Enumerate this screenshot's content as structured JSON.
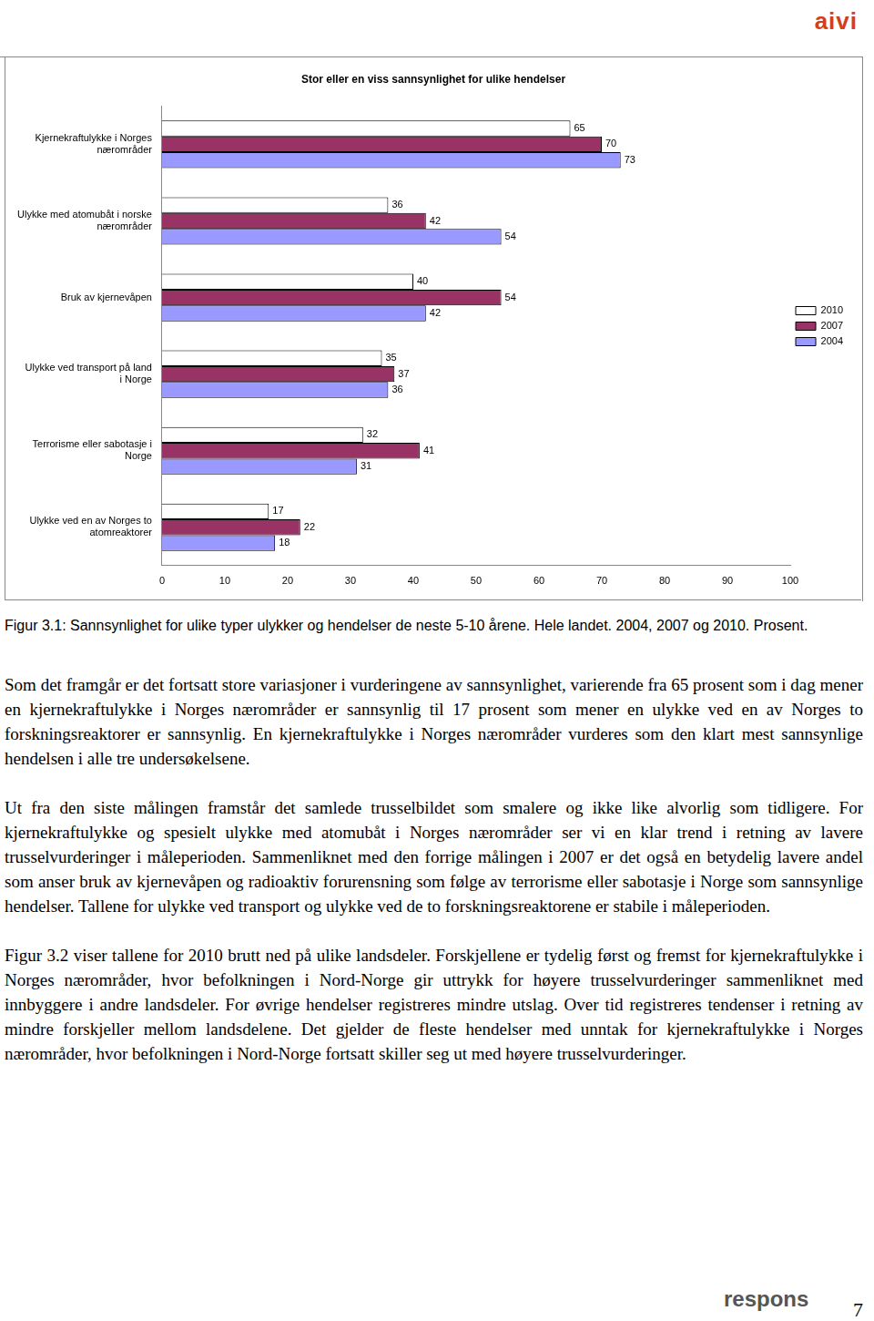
{
  "chart_data": {
    "type": "bar",
    "orientation": "horizontal",
    "title": "Stor eller en viss sannsynlighet for ulike hendelser",
    "categories": [
      "Kjernekraftulykke i Norges nærområder",
      "Ulykke med atomubåt i norske nærområder",
      "Bruk av kjernevåpen",
      "Ulykke ved transport på land i Norge",
      "Terrorisme eller sabotasje i Norge",
      "Ulykke ved en av Norges to atomreaktorer"
    ],
    "series": [
      {
        "name": "2010",
        "color": "#ffffff",
        "values": [
          65,
          36,
          40,
          35,
          32,
          17
        ]
      },
      {
        "name": "2007",
        "color": "#993366",
        "values": [
          70,
          42,
          54,
          37,
          41,
          22
        ]
      },
      {
        "name": "2004",
        "color": "#9999ff",
        "values": [
          73,
          54,
          42,
          36,
          31,
          18
        ]
      }
    ],
    "xlim": [
      0,
      100
    ],
    "xticks": [
      0,
      10,
      20,
      30,
      40,
      50,
      60,
      70,
      80,
      90,
      100
    ],
    "grid": false,
    "legend": "right",
    "data_labels": true
  },
  "header_logo": "aivi",
  "caption": "Figur 3.1: Sannsynlighet for ulike typer ulykker og hendelser de neste 5-10 årene. Hele landet. 2004, 2007 og 2010. Prosent.",
  "paragraphs": [
    "Som det framgår er det fortsatt store variasjoner i vurderingene av sannsynlighet, varierende fra 65 prosent som i dag mener en kjernekraftulykke i Norges nærområder er sannsynlig til 17 prosent som mener en ulykke ved en av Norges to forskningsreaktorer er sannsynlig. En kjernekraftulykke i Norges nærområder vurderes som den klart mest sannsynlige hendelsen i alle tre undersøkelsene.",
    "Ut fra den siste målingen framstår det samlede trusselbildet som smalere og ikke like alvorlig som tidligere. For kjernekraftulykke og spesielt ulykke med atomubåt i Norges nærområder ser vi en klar trend i retning av lavere trusselvurderinger i måleperioden. Sammenliknet med den forrige målingen i 2007 er det også en betydelig lavere andel som anser bruk av kjernevåpen og radioaktiv forurensning som følge av terrorisme eller sabotasje i Norge som sannsynlige hendelser. Tallene for ulykke ved transport og ulykke ved de to forskningsreaktorene er stabile i måleperioden.",
    "Figur 3.2 viser tallene for 2010 brutt ned på ulike landsdeler. Forskjellene er tydelig først og fremst for kjernekraftulykke i Norges nærområder, hvor befolkningen i Nord-Norge gir uttrykk for høyere trusselvurderinger sammenliknet med innbyggere i andre landsdeler. For øvrige hendelser registreres mindre utslag. Over tid registreres tendenser i retning av mindre forskjeller mellom landsdelene. Det gjelder de fleste hendelser med unntak for kjernekraftulykke i Norges nærområder, hvor befolkningen i Nord-Norge fortsatt skiller seg ut med høyere trusselvurderinger."
  ],
  "footer_logo": "respons",
  "page_number": "7"
}
